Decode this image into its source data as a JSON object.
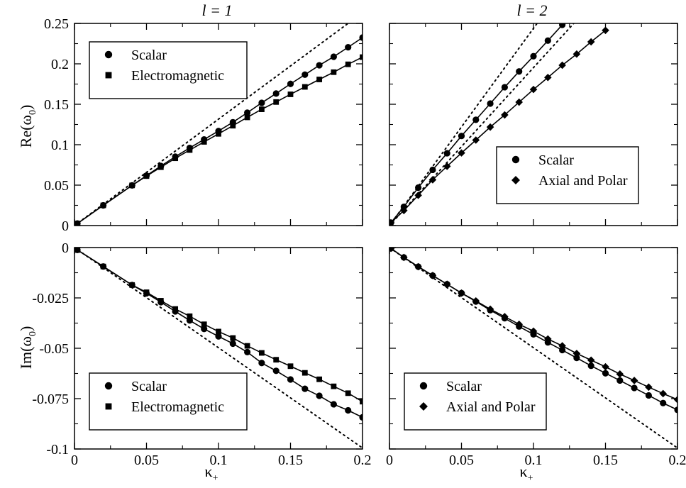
{
  "figure": {
    "column_titles": [
      "l = 1",
      "l = 2"
    ],
    "row_ylabels": [
      {
        "main": "Re(ω",
        "sub": "0",
        "close": ")"
      },
      {
        "main": "Im(ω",
        "sub": "0",
        "close": ")"
      }
    ],
    "xlabel": {
      "main": "κ",
      "sub": "+"
    }
  },
  "chart_data": [
    {
      "type": "line",
      "panel": "top-left",
      "title": "l = 1",
      "ylabel": "Re(ω0)",
      "xlabel": "",
      "xlim": [
        0,
        0.2
      ],
      "ylim": [
        0,
        0.25
      ],
      "xticks": [
        0,
        0.05,
        0.1,
        0.15,
        0.2
      ],
      "yticks": [
        0,
        0.05,
        0.1,
        0.15,
        0.2,
        0.25
      ],
      "xtick_labels": [
        "0",
        "0.05",
        "0.1",
        "0.15",
        "0.2"
      ],
      "ytick_labels": [
        "0",
        "0.05",
        "0.1",
        "0.15",
        "0.2",
        "0.25"
      ],
      "show_xtick_labels": false,
      "show_ytick_labels": true,
      "legend": "top-left",
      "series": [
        {
          "name": "Scalar",
          "marker": "circle",
          "x": [
            0.002,
            0.02,
            0.04,
            0.05,
            0.06,
            0.07,
            0.08,
            0.09,
            0.1,
            0.11,
            0.12,
            0.13,
            0.14,
            0.15,
            0.16,
            0.17,
            0.18,
            0.19,
            0.2
          ],
          "y": [
            0.0025,
            0.025,
            0.0497,
            0.0618,
            0.0737,
            0.0852,
            0.096,
            0.1065,
            0.1169,
            0.1278,
            0.1396,
            0.1518,
            0.1633,
            0.1752,
            0.1866,
            0.1982,
            0.2088,
            0.2205,
            0.2325
          ]
        },
        {
          "name": "Electromagnetic",
          "marker": "square",
          "x": [
            0.002,
            0.02,
            0.04,
            0.05,
            0.06,
            0.07,
            0.08,
            0.09,
            0.1,
            0.11,
            0.12,
            0.13,
            0.14,
            0.15,
            0.16,
            0.17,
            0.18,
            0.19,
            0.2
          ],
          "y": [
            0.0025,
            0.025,
            0.0497,
            0.0612,
            0.0722,
            0.0832,
            0.0934,
            0.1035,
            0.1134,
            0.1235,
            0.1338,
            0.1438,
            0.1528,
            0.1623,
            0.1715,
            0.1807,
            0.1897,
            0.1994,
            0.2083
          ]
        },
        {
          "name": "",
          "style": "dotted",
          "x": [
            0,
            0.2
          ],
          "y": [
            0,
            0.2632
          ]
        }
      ]
    },
    {
      "type": "line",
      "panel": "top-right",
      "title": "l = 2",
      "ylabel": "",
      "xlabel": "",
      "xlim": [
        0,
        0.2
      ],
      "ylim": [
        0,
        0.25
      ],
      "xticks": [
        0,
        0.05,
        0.1,
        0.15,
        0.2
      ],
      "yticks": [
        0,
        0.05,
        0.1,
        0.15,
        0.2,
        0.25
      ],
      "xtick_labels": [
        "0",
        "0.05",
        "0.1",
        "0.15",
        "0.2"
      ],
      "ytick_labels": [
        "0",
        "0.05",
        "0.1",
        "0.15",
        "0.2",
        "0.25"
      ],
      "show_xtick_labels": false,
      "show_ytick_labels": false,
      "legend": "center-right",
      "series": [
        {
          "name": "Scalar",
          "marker": "circle",
          "x": [
            0.001,
            0.01,
            0.02,
            0.03,
            0.04,
            0.05,
            0.06,
            0.07,
            0.08,
            0.09,
            0.1,
            0.11,
            0.12
          ],
          "y": [
            0.0035,
            0.0232,
            0.0469,
            0.0689,
            0.0894,
            0.1108,
            0.1308,
            0.1509,
            0.1711,
            0.1906,
            0.2094,
            0.2287,
            0.2482
          ]
        },
        {
          "name": "Axial and Polar",
          "marker": "diamond",
          "x": [
            0.001,
            0.01,
            0.02,
            0.03,
            0.04,
            0.05,
            0.06,
            0.07,
            0.08,
            0.09,
            0.1,
            0.11,
            0.12,
            0.13,
            0.14,
            0.15
          ],
          "y": [
            0.0035,
            0.0186,
            0.0374,
            0.0566,
            0.0733,
            0.0898,
            0.1057,
            0.1218,
            0.1368,
            0.1526,
            0.1683,
            0.1831,
            0.1983,
            0.2121,
            0.2272,
            0.2414
          ]
        },
        {
          "name": "",
          "style": "dotted",
          "x": [
            0,
            0.1025
          ],
          "y": [
            0,
            0.25
          ]
        },
        {
          "name": "",
          "style": "dotted",
          "x": [
            0,
            0.128
          ],
          "y": [
            0,
            0.25
          ]
        }
      ]
    },
    {
      "type": "line",
      "panel": "bottom-left",
      "title": "",
      "ylabel": "Im(ω0)",
      "xlabel": "κ+",
      "xlim": [
        0,
        0.2
      ],
      "ylim": [
        -0.1,
        0
      ],
      "xticks": [
        0,
        0.05,
        0.1,
        0.15,
        0.2
      ],
      "yticks": [
        -0.1,
        -0.075,
        -0.05,
        -0.025,
        0
      ],
      "xtick_labels": [
        "0",
        "0.05",
        "0.1",
        "0.15",
        "0.2"
      ],
      "ytick_labels": [
        "-0.1",
        "-0.075",
        "-0.05",
        "-0.025",
        "0"
      ],
      "show_xtick_labels": true,
      "show_ytick_labels": true,
      "legend": "bottom-left",
      "series": [
        {
          "name": "Scalar",
          "marker": "circle",
          "x": [
            0.002,
            0.02,
            0.04,
            0.05,
            0.06,
            0.07,
            0.08,
            0.09,
            0.1,
            0.11,
            0.12,
            0.13,
            0.14,
            0.15,
            0.16,
            0.17,
            0.18,
            0.19,
            0.2
          ],
          "y": [
            -0.0012,
            -0.0094,
            -0.0186,
            -0.0227,
            -0.0271,
            -0.0317,
            -0.0362,
            -0.0404,
            -0.0441,
            -0.0477,
            -0.0519,
            -0.0573,
            -0.0612,
            -0.0655,
            -0.0701,
            -0.0736,
            -0.0778,
            -0.0808,
            -0.0843
          ]
        },
        {
          "name": "Electromagnetic",
          "marker": "square",
          "x": [
            0.002,
            0.02,
            0.04,
            0.05,
            0.06,
            0.07,
            0.08,
            0.09,
            0.1,
            0.11,
            0.12,
            0.13,
            0.14,
            0.15,
            0.16,
            0.17,
            0.18,
            0.19,
            0.2
          ],
          "y": [
            -0.0012,
            -0.0094,
            -0.0186,
            -0.0222,
            -0.0264,
            -0.0305,
            -0.0341,
            -0.0381,
            -0.0417,
            -0.0449,
            -0.0488,
            -0.0523,
            -0.0557,
            -0.0589,
            -0.0622,
            -0.0654,
            -0.0689,
            -0.0723,
            -0.0765
          ]
        },
        {
          "name": "",
          "style": "dotted",
          "x": [
            0,
            0.2
          ],
          "y": [
            0,
            -0.0995
          ]
        }
      ]
    },
    {
      "type": "line",
      "panel": "bottom-right",
      "title": "",
      "ylabel": "",
      "xlabel": "κ+",
      "xlim": [
        0,
        0.2
      ],
      "ylim": [
        -0.1,
        0
      ],
      "xticks": [
        0,
        0.05,
        0.1,
        0.15,
        0.2
      ],
      "yticks": [
        -0.1,
        -0.075,
        -0.05,
        -0.025,
        0
      ],
      "xtick_labels": [
        "0",
        "0.05",
        "0.1",
        "0.15",
        "0.2"
      ],
      "ytick_labels": [
        "-0.1",
        "-0.075",
        "-0.05",
        "-0.025",
        "0"
      ],
      "show_xtick_labels": true,
      "show_ytick_labels": false,
      "legend": "bottom-left",
      "series": [
        {
          "name": "Scalar",
          "marker": "circle",
          "x": [
            0.001,
            0.01,
            0.02,
            0.03,
            0.04,
            0.05,
            0.06,
            0.07,
            0.08,
            0.09,
            0.1,
            0.11,
            0.12,
            0.13,
            0.14,
            0.15,
            0.16,
            0.17,
            0.18,
            0.19,
            0.2
          ],
          "y": [
            -0.0004,
            -0.0049,
            -0.0095,
            -0.0139,
            -0.0182,
            -0.0226,
            -0.0268,
            -0.0311,
            -0.0351,
            -0.0392,
            -0.0431,
            -0.0471,
            -0.0509,
            -0.0548,
            -0.0587,
            -0.0624,
            -0.066,
            -0.0697,
            -0.0734,
            -0.0772,
            -0.0806
          ]
        },
        {
          "name": "Axial and Polar",
          "marker": "diamond",
          "x": [
            0.001,
            0.01,
            0.02,
            0.03,
            0.04,
            0.05,
            0.06,
            0.07,
            0.08,
            0.09,
            0.1,
            0.11,
            0.12,
            0.13,
            0.14,
            0.15,
            0.16,
            0.17,
            0.18,
            0.19,
            0.2
          ],
          "y": [
            -0.0004,
            -0.0049,
            -0.0095,
            -0.0139,
            -0.0182,
            -0.0226,
            -0.0265,
            -0.0306,
            -0.0343,
            -0.0381,
            -0.0415,
            -0.0454,
            -0.0488,
            -0.0526,
            -0.0559,
            -0.0592,
            -0.0628,
            -0.066,
            -0.0693,
            -0.0725,
            -0.0755
          ]
        },
        {
          "name": "",
          "style": "dotted",
          "x": [
            0,
            0.2
          ],
          "y": [
            0,
            -0.0995
          ]
        }
      ]
    }
  ]
}
